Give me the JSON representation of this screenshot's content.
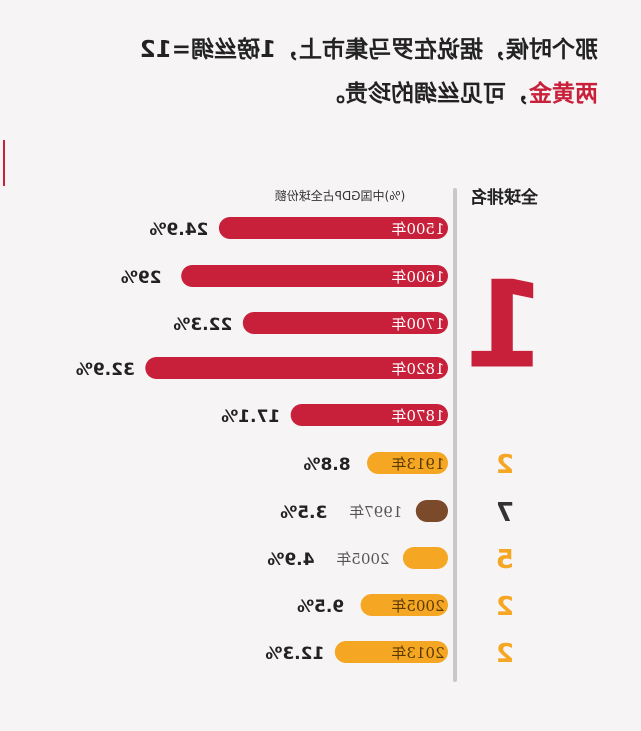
{
  "header": {
    "line1_dark": "那个时候，据说在罗马集市上，1磅丝绸=12",
    "line2_red": "两黄金",
    "line2_dark": "，可见丝绸的珍贵。"
  },
  "chart_data": {
    "type": "bar",
    "ylabel": "(%)中国GDP占全球份额",
    "rank_header": "全球排名",
    "categories": [
      "1500年",
      "1600年",
      "1700年",
      "1820年",
      "1870年",
      "1913年",
      "1997年",
      "2005年",
      "2005年",
      "2013年"
    ],
    "values": [
      24.9,
      29,
      22.3,
      32.9,
      17.1,
      8.8,
      3.5,
      4.9,
      9.5,
      12.3
    ],
    "value_labels": [
      "24.9%",
      "29%",
      "22.3%",
      "32.9%",
      "17.1%",
      "8.8%",
      "3.5%",
      "4.9%",
      "9.5%",
      "12.3%"
    ],
    "bar_colors": [
      "#c8203a",
      "#c8203a",
      "#c8203a",
      "#c8203a",
      "#c8203a",
      "#f5a623",
      "#7b4a2a",
      "#f5a623",
      "#f5a623",
      "#f5a623"
    ],
    "rank_groups": [
      {
        "rank": "1",
        "rows": [
          0,
          4
        ],
        "color": "#c8203a"
      },
      {
        "rank": "2",
        "rows": [
          5,
          5
        ],
        "color": "#f5a623"
      },
      {
        "rank": "7",
        "rows": [
          6,
          6
        ],
        "color": "#333333"
      },
      {
        "rank": "5",
        "rows": [
          7,
          7
        ],
        "color": "#f5a623"
      },
      {
        "rank": "2",
        "rows": [
          8,
          8
        ],
        "color": "#f5a623"
      },
      {
        "rank": "2",
        "rows": [
          9,
          9
        ],
        "color": "#f5a623"
      }
    ],
    "mirrored": true
  }
}
